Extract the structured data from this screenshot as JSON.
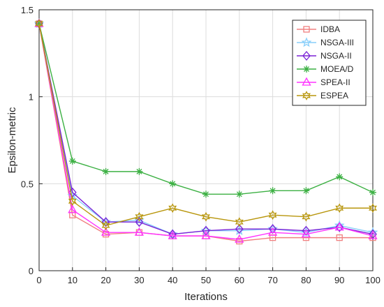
{
  "chart_data": {
    "type": "line",
    "xlabel": "Iterations",
    "ylabel": "Epsilon-metric",
    "xlim": [
      0,
      100
    ],
    "ylim": [
      0,
      1.5
    ],
    "x": [
      0,
      10,
      20,
      30,
      40,
      50,
      60,
      70,
      80,
      90,
      100
    ],
    "xticks": [
      "0",
      "10",
      "20",
      "30",
      "40",
      "50",
      "60",
      "70",
      "80",
      "90",
      "100"
    ],
    "yticks": [
      {
        "value": 0,
        "label": "0"
      },
      {
        "value": 0.5,
        "label": "0.5"
      },
      {
        "value": 1,
        "label": "1"
      },
      {
        "value": 1.5,
        "label": "1.5"
      }
    ],
    "grid": true,
    "legend_position": "top-right",
    "series": [
      {
        "name": "IDBA",
        "color": "#f08080",
        "marker": "square",
        "values": [
          1.42,
          0.32,
          0.21,
          0.22,
          0.2,
          0.2,
          0.17,
          0.19,
          0.19,
          0.19,
          0.19
        ]
      },
      {
        "name": "NSGA-III",
        "color": "#87cefa",
        "marker": "star",
        "values": [
          1.42,
          0.43,
          0.28,
          0.29,
          0.21,
          0.23,
          0.23,
          0.24,
          0.22,
          0.26,
          0.22
        ]
      },
      {
        "name": "NSGA-II",
        "color": "#7b22d6",
        "marker": "diamond",
        "values": [
          1.42,
          0.45,
          0.28,
          0.28,
          0.21,
          0.23,
          0.24,
          0.24,
          0.23,
          0.25,
          0.21
        ]
      },
      {
        "name": "MOEA/D",
        "color": "#3cb043",
        "marker": "asterisk",
        "values": [
          1.42,
          0.63,
          0.57,
          0.57,
          0.5,
          0.44,
          0.44,
          0.46,
          0.46,
          0.54,
          0.45
        ]
      },
      {
        "name": "SPEA-II",
        "color": "#ff33ff",
        "marker": "triangle",
        "values": [
          1.42,
          0.35,
          0.22,
          0.22,
          0.2,
          0.2,
          0.18,
          0.22,
          0.21,
          0.25,
          0.2
        ]
      },
      {
        "name": "ESPEA",
        "color": "#b8960c",
        "marker": "hexagram",
        "values": [
          1.42,
          0.4,
          0.26,
          0.31,
          0.36,
          0.31,
          0.28,
          0.32,
          0.31,
          0.36,
          0.36
        ]
      }
    ]
  }
}
